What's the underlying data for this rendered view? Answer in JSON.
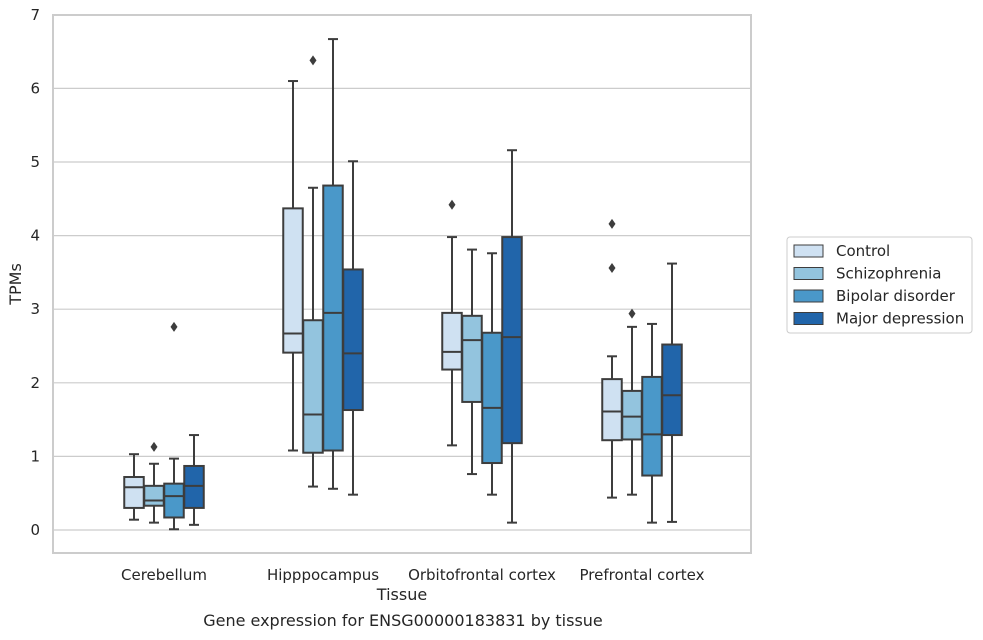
{
  "chart_data": {
    "type": "boxplot",
    "caption": "Gene expression for ENSG00000183831 by tissue",
    "xlabel": "Tissue",
    "ylabel": "TPMs",
    "ylim": [
      -0.3,
      7
    ],
    "yticks": [
      0,
      1,
      2,
      3,
      4,
      5,
      6,
      7
    ],
    "grid": "horizontal",
    "legend_position": "right",
    "categories": [
      "Cerebellum",
      "Hipppocampus",
      "Orbitofrontal cortex",
      "Prefrontal cortex"
    ],
    "series": [
      {
        "name": "Control",
        "color": "#cfe1f2",
        "boxes": [
          {
            "whisker_low": 0.14,
            "q1": 0.3,
            "median": 0.58,
            "q3": 0.72,
            "whisker_high": 1.03,
            "outliers": []
          },
          {
            "whisker_low": 1.08,
            "q1": 2.41,
            "median": 2.67,
            "q3": 4.37,
            "whisker_high": 6.1,
            "outliers": []
          },
          {
            "whisker_low": 1.15,
            "q1": 2.18,
            "median": 2.42,
            "q3": 2.95,
            "whisker_high": 3.98,
            "outliers": [
              4.42
            ]
          },
          {
            "whisker_low": 0.44,
            "q1": 1.22,
            "median": 1.61,
            "q3": 2.05,
            "whisker_high": 2.36,
            "outliers": [
              3.56,
              4.16
            ]
          }
        ]
      },
      {
        "name": "Schizophrenia",
        "color": "#93c4de",
        "boxes": [
          {
            "whisker_low": 0.1,
            "q1": 0.33,
            "median": 0.4,
            "q3": 0.6,
            "whisker_high": 0.9,
            "outliers": [
              1.13
            ]
          },
          {
            "whisker_low": 0.59,
            "q1": 1.05,
            "median": 1.57,
            "q3": 2.85,
            "whisker_high": 4.65,
            "outliers": [
              6.38
            ]
          },
          {
            "whisker_low": 0.76,
            "q1": 1.74,
            "median": 2.58,
            "q3": 2.91,
            "whisker_high": 3.81,
            "outliers": []
          },
          {
            "whisker_low": 0.48,
            "q1": 1.23,
            "median": 1.54,
            "q3": 1.89,
            "whisker_high": 2.76,
            "outliers": [
              2.94
            ]
          }
        ]
      },
      {
        "name": "Bipolar disorder",
        "color": "#4a98c9",
        "boxes": [
          {
            "whisker_low": 0.01,
            "q1": 0.17,
            "median": 0.46,
            "q3": 0.63,
            "whisker_high": 0.97,
            "outliers": [
              2.76
            ]
          },
          {
            "whisker_low": 0.56,
            "q1": 1.08,
            "median": 2.95,
            "q3": 4.68,
            "whisker_high": 6.67,
            "outliers": []
          },
          {
            "whisker_low": 0.48,
            "q1": 0.91,
            "median": 1.66,
            "q3": 2.68,
            "whisker_high": 3.76,
            "outliers": []
          },
          {
            "whisker_low": 0.1,
            "q1": 0.74,
            "median": 1.3,
            "q3": 2.08,
            "whisker_high": 2.8,
            "outliers": []
          }
        ]
      },
      {
        "name": "Major depression",
        "color": "#2165aa",
        "boxes": [
          {
            "whisker_low": 0.07,
            "q1": 0.3,
            "median": 0.6,
            "q3": 0.87,
            "whisker_high": 1.29,
            "outliers": []
          },
          {
            "whisker_low": 0.48,
            "q1": 1.63,
            "median": 2.4,
            "q3": 3.54,
            "whisker_high": 5.01,
            "outliers": []
          },
          {
            "whisker_low": 0.1,
            "q1": 1.18,
            "median": 2.62,
            "q3": 3.98,
            "whisker_high": 5.16,
            "outliers": []
          },
          {
            "whisker_low": 0.11,
            "q1": 1.29,
            "median": 1.83,
            "q3": 2.52,
            "whisker_high": 3.62,
            "outliers": []
          }
        ]
      }
    ]
  }
}
